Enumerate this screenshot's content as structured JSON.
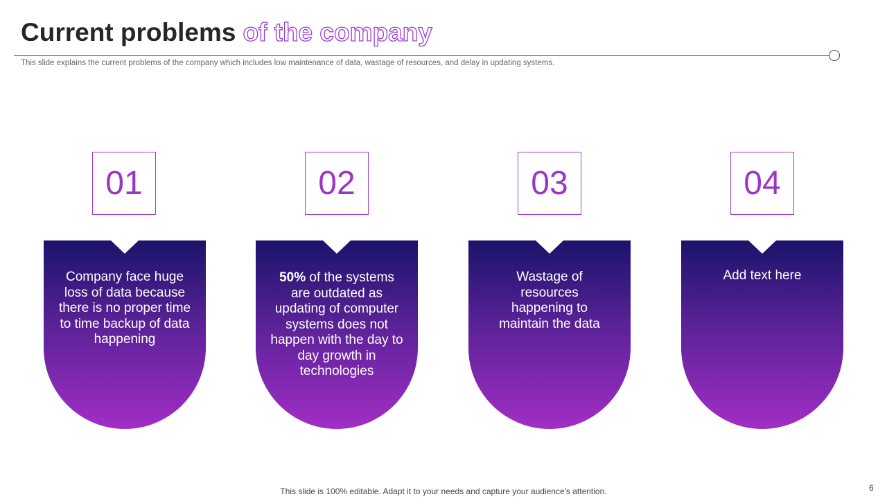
{
  "header": {
    "title_main": "Current problems",
    "title_outline": "of the company",
    "subtitle": "This slide explains the current problems of the company which includes low maintenance of data, wastage of resources, and delay in updating systems."
  },
  "cards": [
    {
      "number": "01",
      "text": "Company face huge loss of data because there is no proper time to time backup of data happening"
    },
    {
      "number": "02",
      "text_bold": "50%",
      "text": " of the systems are outdated as updating of computer systems does not happen with the day to day growth in technologies"
    },
    {
      "number": "03",
      "text": "Wastage of resources happening to maintain the data"
    },
    {
      "number": "04",
      "text": "Add text here"
    }
  ],
  "footer": {
    "note": "This slide is 100% editable. Adapt it to your needs and capture your audience's attention.",
    "page_number": "6"
  },
  "colors": {
    "accent": "#9b3ad6",
    "gradient_top": "#1b136a",
    "gradient_bottom": "#a22ec6"
  }
}
